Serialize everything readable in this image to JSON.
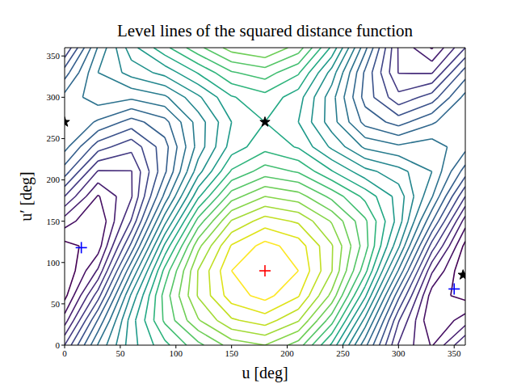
{
  "chart_data": {
    "type": "contour",
    "title": "Level lines of the squared distance function",
    "x_label": "u [deg]",
    "y_label": "u′ [deg]",
    "xlim": [
      0,
      360
    ],
    "ylim": [
      0,
      360
    ],
    "xticks": [
      0,
      50,
      100,
      150,
      200,
      250,
      300,
      350
    ],
    "yticks": [
      0,
      50,
      100,
      150,
      200,
      250,
      300,
      350
    ],
    "grid": false,
    "contour": {
      "x": [
        0,
        30,
        60,
        90,
        120,
        150,
        180,
        210,
        240,
        270,
        300,
        330,
        360
      ],
      "y": [
        0,
        30,
        60,
        90,
        120,
        150,
        180,
        210,
        240,
        270,
        300,
        330,
        360
      ],
      "z": [
        [
          1.0,
          2.02,
          2.72,
          3.14,
          3.54,
          3.89,
          4.0,
          3.71,
          2.96,
          1.86,
          0.78,
          0.38,
          1.0
        ],
        [
          0.5,
          1.62,
          2.71,
          3.44,
          3.98,
          4.37,
          4.5,
          4.22,
          3.48,
          2.33,
          1.02,
          0.2,
          0.5
        ],
        [
          0.13,
          1.11,
          2.44,
          3.49,
          4.22,
          4.71,
          4.87,
          4.62,
          3.94,
          2.84,
          1.46,
          0.29,
          0.13
        ],
        [
          0.0,
          0.63,
          1.98,
          3.27,
          4.21,
          4.8,
          5.0,
          4.8,
          4.21,
          3.27,
          1.98,
          0.63,
          0.0
        ],
        [
          0.13,
          0.29,
          1.46,
          2.84,
          3.94,
          4.62,
          4.87,
          4.71,
          4.22,
          3.49,
          2.44,
          1.11,
          0.13
        ],
        [
          0.5,
          0.2,
          1.02,
          2.33,
          3.48,
          4.22,
          4.5,
          4.37,
          3.98,
          3.44,
          2.71,
          1.62,
          0.5
        ],
        [
          1.0,
          0.38,
          0.78,
          1.86,
          2.96,
          3.71,
          4.0,
          3.89,
          3.54,
          3.14,
          2.72,
          2.02,
          1.0
        ],
        [
          1.5,
          0.78,
          0.79,
          1.56,
          2.52,
          3.23,
          3.5,
          3.38,
          3.02,
          2.67,
          2.48,
          2.2,
          1.5
        ],
        [
          1.87,
          1.29,
          1.06,
          1.52,
          2.28,
          2.89,
          3.13,
          2.98,
          2.56,
          2.16,
          2.04,
          2.11,
          1.87
        ],
        [
          2.0,
          1.77,
          1.52,
          1.73,
          2.29,
          2.8,
          3.0,
          2.8,
          2.29,
          1.73,
          1.52,
          1.77,
          2.0
        ],
        [
          1.87,
          2.11,
          2.04,
          2.16,
          2.56,
          2.98,
          3.13,
          2.89,
          2.28,
          1.52,
          1.06,
          1.29,
          1.87
        ],
        [
          1.5,
          2.2,
          2.48,
          2.67,
          3.02,
          3.38,
          3.5,
          3.23,
          2.52,
          1.56,
          0.79,
          0.78,
          1.5
        ],
        [
          1.0,
          2.02,
          2.72,
          3.14,
          3.54,
          3.89,
          4.0,
          3.71,
          2.96,
          1.86,
          0.78,
          0.38,
          1.0
        ]
      ],
      "levels": [
        0.2,
        0.4,
        0.6,
        0.8,
        1.0,
        1.2,
        1.4,
        1.6,
        1.8,
        2.0,
        2.2,
        2.4,
        2.6,
        2.8,
        3.0,
        3.2,
        3.4,
        3.6,
        3.8,
        4.0,
        4.2,
        4.4,
        4.6,
        4.8
      ],
      "colors": [
        "#440154",
        "#471164",
        "#482071",
        "#472d7b",
        "#443a83",
        "#404688",
        "#3b528b",
        "#355f8d",
        "#31688e",
        "#2c728e",
        "#287c8e",
        "#24868e",
        "#21918c",
        "#1f9a8a",
        "#22a884",
        "#2fb47c",
        "#42be71",
        "#56c667",
        "#6ece58",
        "#86d549",
        "#a2da37",
        "#c2df23",
        "#dfe318",
        "#fde725"
      ]
    },
    "series": [
      {
        "type": "scatter",
        "marker": "plus",
        "color": "#ff0000",
        "x": [
          180
        ],
        "y": [
          90
        ]
      },
      {
        "type": "scatter",
        "marker": "plus",
        "color": "#0000ff",
        "x": [
          15,
          350
        ],
        "y": [
          118,
          68
        ]
      },
      {
        "type": "scatter",
        "marker": "star",
        "color": "#000000",
        "x": [
          180,
          0,
          358
        ],
        "y": [
          270,
          270,
          85
        ]
      }
    ]
  }
}
